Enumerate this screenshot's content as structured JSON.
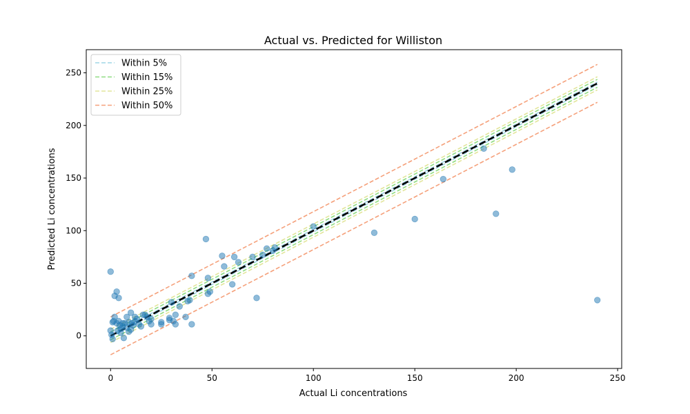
{
  "chart_data": {
    "type": "scatter",
    "title": "Actual vs. Predicted for Williston",
    "xlabel": "Actual Li concentrations",
    "ylabel": "Predicted Li concentrations",
    "xlim": [
      -12,
      252
    ],
    "ylim": [
      -31,
      272
    ],
    "xticks": [
      0,
      50,
      100,
      150,
      200,
      250
    ],
    "yticks": [
      0,
      50,
      100,
      150,
      200,
      250
    ],
    "grid": false,
    "legend_location": "upper left",
    "identity_line": {
      "x": [
        0,
        240
      ],
      "color": "#000000"
    },
    "bands": [
      {
        "name": "Within 5%",
        "offset": 1.25,
        "color": "#9fd6e6"
      },
      {
        "name": "Within 15%",
        "offset": 3.75,
        "color": "#8fdc82"
      },
      {
        "name": "Within 25%",
        "offset": 6.25,
        "color": "#e2e59a"
      },
      {
        "name": "Within 50%",
        "offset": 18,
        "color": "#f5a07a"
      }
    ],
    "points": {
      "color": "#1f77b4",
      "x": [
        0,
        0,
        0.5,
        1,
        1,
        1.5,
        2,
        2,
        3,
        3,
        3.5,
        4,
        4,
        4.5,
        5,
        5,
        6,
        6,
        6.5,
        7,
        8,
        8,
        9,
        9,
        10,
        10,
        10.5,
        11,
        12,
        12,
        13,
        14,
        15,
        16,
        17,
        18,
        19,
        20,
        20,
        25,
        25,
        29,
        29,
        30,
        31,
        32,
        32,
        34,
        37,
        38,
        39,
        40,
        40,
        47,
        48,
        48,
        49,
        55,
        56,
        60,
        61,
        63,
        70,
        72,
        75,
        77,
        80,
        81,
        100,
        130,
        150,
        164,
        184,
        190,
        198,
        240
      ],
      "y": [
        61,
        5,
        1,
        13,
        -3,
        14,
        38,
        18,
        42,
        12,
        5,
        36,
        14,
        10,
        7,
        3,
        12,
        9,
        -2,
        12,
        18,
        8,
        4,
        13,
        22,
        6,
        12,
        10,
        14,
        18,
        16,
        11,
        9,
        20,
        20,
        18,
        14,
        11,
        16,
        11,
        13,
        17,
        15,
        32,
        14,
        11,
        20,
        28,
        18,
        33,
        34,
        57,
        11,
        92,
        55,
        40,
        42,
        76,
        66,
        49,
        75,
        70,
        75,
        36,
        77,
        83,
        81,
        84,
        104,
        98,
        111,
        149,
        178,
        116,
        158,
        34
      ]
    }
  }
}
